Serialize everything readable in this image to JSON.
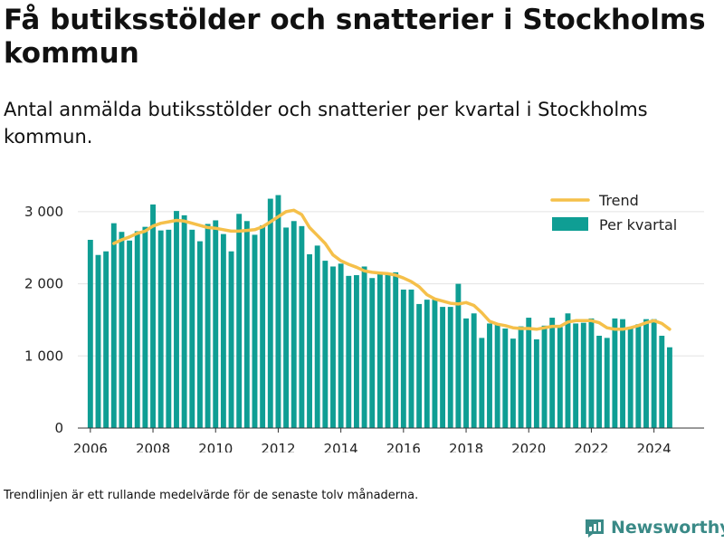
{
  "title": "Få butiksstölder och snatterier i Stockholms kommun",
  "subtitle": "Antal anmälda butiksstölder och snatterier per kvartal i Stockholms kommun.",
  "note": "Trendlinjen är ett rullande medelvärde för de senaste tolv månaderna.",
  "brand": "Newsworthy",
  "colors": {
    "bar": "#0f9e94",
    "trend": "#f5c04a",
    "brand": "#3a8a87"
  },
  "chart_data": {
    "type": "bar",
    "xlim": [
      2005.6,
      2025.6
    ],
    "ylim": [
      0,
      3300
    ],
    "x_ticks": [
      2006,
      2008,
      2010,
      2012,
      2014,
      2016,
      2018,
      2020,
      2022,
      2024
    ],
    "x_tick_labels": [
      "2006",
      "2008",
      "2010",
      "2012",
      "2014",
      "2016",
      "2018",
      "2020",
      "2022",
      "2024"
    ],
    "y_ticks": [
      0,
      1000,
      2000,
      3000
    ],
    "y_tick_labels": [
      "0",
      "1 000",
      "2 000",
      "3 000"
    ],
    "grid": true,
    "legend_position": "top-right",
    "x_start": 2006,
    "x_step": 0.25,
    "series": [
      {
        "name": "Per kvartal",
        "type": "bar",
        "values": [
          2610,
          2400,
          2450,
          2840,
          2720,
          2600,
          2730,
          2790,
          3100,
          2740,
          2750,
          3010,
          2950,
          2750,
          2590,
          2830,
          2880,
          2690,
          2450,
          2970,
          2870,
          2680,
          2810,
          3180,
          3230,
          2780,
          2870,
          2800,
          2410,
          2530,
          2320,
          2240,
          2280,
          2110,
          2120,
          2240,
          2080,
          2140,
          2140,
          2160,
          1920,
          1920,
          1720,
          1780,
          1780,
          1680,
          1680,
          2000,
          1520,
          1590,
          1250,
          1450,
          1450,
          1380,
          1240,
          1410,
          1530,
          1230,
          1420,
          1530,
          1400,
          1590,
          1450,
          1460,
          1520,
          1280,
          1250,
          1520,
          1510,
          1400,
          1440,
          1510,
          1510,
          1280,
          1120
        ]
      },
      {
        "name": "Trend",
        "type": "line",
        "x": [
          2006.75,
          2007,
          2007.25,
          2007.5,
          2007.75,
          2008,
          2008.25,
          2008.5,
          2008.75,
          2009,
          2009.25,
          2009.5,
          2009.75,
          2010,
          2010.25,
          2010.5,
          2010.75,
          2011,
          2011.25,
          2011.5,
          2011.75,
          2012,
          2012.25,
          2012.5,
          2012.75,
          2013,
          2013.25,
          2013.5,
          2013.75,
          2014,
          2014.25,
          2014.5,
          2014.75,
          2015,
          2015.25,
          2015.5,
          2015.75,
          2016,
          2016.25,
          2016.5,
          2016.75,
          2017,
          2017.25,
          2017.5,
          2017.75,
          2018,
          2018.25,
          2018.5,
          2018.75,
          2019,
          2019.25,
          2019.5,
          2019.75,
          2020,
          2020.25,
          2020.5,
          2020.75,
          2021,
          2021.25,
          2021.5,
          2021.75,
          2022,
          2022.25,
          2022.5,
          2022.75,
          2023,
          2023.25,
          2023.5,
          2023.75,
          2024,
          2024.25,
          2024.5
        ],
        "values": [
          2560,
          2610,
          2650,
          2700,
          2730,
          2800,
          2840,
          2860,
          2880,
          2870,
          2840,
          2810,
          2780,
          2770,
          2750,
          2730,
          2730,
          2740,
          2750,
          2790,
          2860,
          2930,
          3000,
          3020,
          2960,
          2780,
          2670,
          2560,
          2400,
          2320,
          2270,
          2230,
          2180,
          2160,
          2150,
          2140,
          2120,
          2080,
          2030,
          1960,
          1850,
          1790,
          1760,
          1730,
          1720,
          1740,
          1700,
          1600,
          1480,
          1440,
          1420,
          1390,
          1380,
          1380,
          1370,
          1390,
          1410,
          1410,
          1470,
          1490,
          1490,
          1490,
          1460,
          1390,
          1370,
          1370,
          1390,
          1420,
          1460,
          1490,
          1450,
          1370
        ]
      }
    ]
  }
}
